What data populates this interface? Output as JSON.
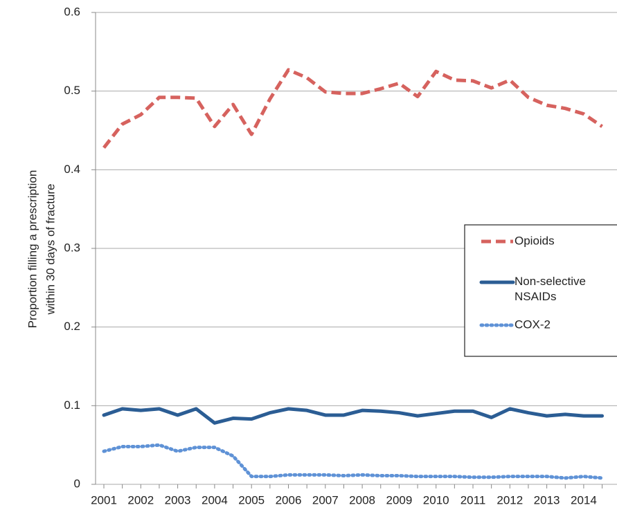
{
  "chart_data": {
    "type": "line",
    "ylabel": [
      "Proportion filling a prescription",
      "within 30 days of fracture"
    ],
    "categories": [
      "2001",
      null,
      "2002",
      null,
      "2003",
      null,
      "2004",
      null,
      "2005",
      null,
      "2006",
      null,
      "2007",
      null,
      "2008",
      null,
      "2009",
      null,
      "2010",
      null,
      "2011",
      null,
      "2012",
      null,
      "2013",
      null,
      "2014",
      null
    ],
    "series": [
      {
        "name": "Opioids",
        "color": "#d6625e",
        "style": "dashed",
        "values": [
          0.428,
          0.458,
          0.47,
          0.492,
          0.492,
          0.491,
          0.455,
          0.483,
          0.445,
          0.49,
          0.527,
          0.517,
          0.499,
          0.497,
          0.497,
          0.503,
          0.51,
          0.493,
          0.525,
          0.514,
          0.513,
          0.504,
          0.514,
          0.492,
          0.482,
          0.478,
          0.471,
          0.455
        ]
      },
      {
        "name": "Non-selective NSAIDs",
        "color": "#2b5d94",
        "style": "solid",
        "values": [
          0.088,
          0.096,
          0.094,
          0.096,
          0.088,
          0.096,
          0.078,
          0.084,
          0.083,
          0.091,
          0.096,
          0.094,
          0.088,
          0.088,
          0.094,
          0.093,
          0.091,
          0.087,
          0.09,
          0.093,
          0.093,
          0.085,
          0.096,
          0.091,
          0.087,
          0.089,
          0.087,
          0.087
        ]
      },
      {
        "name": "COX-2",
        "color": "#5f92d6",
        "style": "dotted",
        "values": [
          0.042,
          0.048,
          0.048,
          0.05,
          0.042,
          0.047,
          0.047,
          0.036,
          0.01,
          0.01,
          0.012,
          0.012,
          0.012,
          0.011,
          0.012,
          0.011,
          0.011,
          0.01,
          0.01,
          0.01,
          0.009,
          0.009,
          0.01,
          0.01,
          0.01,
          0.008,
          0.01,
          0.008
        ]
      }
    ],
    "ylim": [
      0,
      0.6
    ],
    "yticks": [
      0,
      0.1,
      0.2,
      0.3,
      0.4,
      0.5,
      0.6
    ],
    "grid": true,
    "legend": "right"
  }
}
